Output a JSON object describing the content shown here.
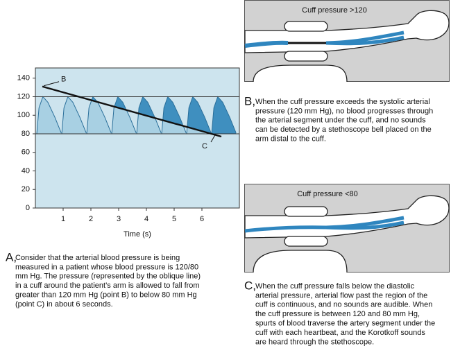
{
  "chart_data": {
    "type": "line",
    "xlabel": "Time (s)",
    "xlim": [
      0,
      7.35
    ],
    "ylim": [
      0,
      151
    ],
    "xticks": [
      1,
      2,
      3,
      4,
      5,
      6
    ],
    "yticks": [
      0,
      20,
      40,
      60,
      80,
      100,
      120,
      140
    ],
    "hlines": [
      80,
      120
    ],
    "background": "#cde4ee",
    "series": [
      {
        "color": "#2a6f9a",
        "fill": "#a8d0e3",
        "fill_above_cuff": "#3f8fbf",
        "x": [
          0.05,
          0.13,
          0.27,
          0.45,
          0.7,
          0.93,
          0.95,
          1.03,
          1.17,
          1.35,
          1.6,
          1.83,
          1.85,
          1.93,
          2.07,
          2.25,
          2.5,
          2.73,
          2.75,
          2.83,
          2.97,
          3.15,
          3.4,
          3.63,
          3.65,
          3.73,
          3.87,
          4.05,
          4.3,
          4.53,
          4.55,
          4.63,
          4.77,
          4.95,
          5.2,
          5.43,
          5.45,
          5.53,
          5.67,
          5.85,
          6.1,
          6.33,
          6.35,
          6.43,
          6.57,
          6.75,
          7.0,
          7.23
        ],
        "values": [
          80,
          108,
          120,
          114,
          98,
          81,
          80,
          108,
          120,
          114,
          98,
          81,
          80,
          108,
          120,
          114,
          98,
          81,
          80,
          108,
          120,
          114,
          98,
          81,
          80,
          108,
          120,
          114,
          98,
          81,
          80,
          108,
          120,
          114,
          98,
          81,
          80,
          108,
          120,
          114,
          98,
          81,
          80,
          108,
          120,
          114,
          98,
          81
        ]
      },
      {
        "color": "#111111",
        "x": [
          0.25,
          6.7
        ],
        "values": [
          131,
          77
        ]
      }
    ],
    "annotations": [
      {
        "text": "B"
      },
      {
        "text": "C"
      }
    ]
  },
  "diagrams": [
    {
      "title": "Cuff pressure >120"
    },
    {
      "title": "Cuff pressure <80"
    }
  ],
  "captions": [
    {
      "letter": "A,",
      "lines": [
        "Consider that the arterial blood pressure is being",
        "measured in a patient whose blood pressure is 120/80",
        "mm Hg. The pressure (represented by the oblique line)",
        "in a cuff around the patient’s arm is allowed to fall from",
        "greater than 120 mm Hg (point B) to below 80 mm Hg",
        "(point C) in about 6 seconds."
      ]
    },
    {
      "letter": "B,",
      "lines": [
        "When the cuff pressure exceeds the systolic arterial",
        "pressure (120 mm Hg), no blood progresses through",
        "the arterial segment under the cuff, and no sounds",
        "can be detected by a stethoscope bell placed on the",
        "arm distal to the cuff."
      ]
    },
    {
      "letter": "C,",
      "lines": [
        "When the cuff pressure falls below the diastolic",
        "arterial pressure, arterial flow past the region of the",
        "cuff is continuous, and no sounds are audible. When",
        "the cuff pressure is between 120 and 80 mm Hg,",
        "spurts of blood traverse the artery segment under the",
        "cuff with each heartbeat, and the Korotkoff sounds",
        "are heard through the stethoscope."
      ]
    }
  ]
}
